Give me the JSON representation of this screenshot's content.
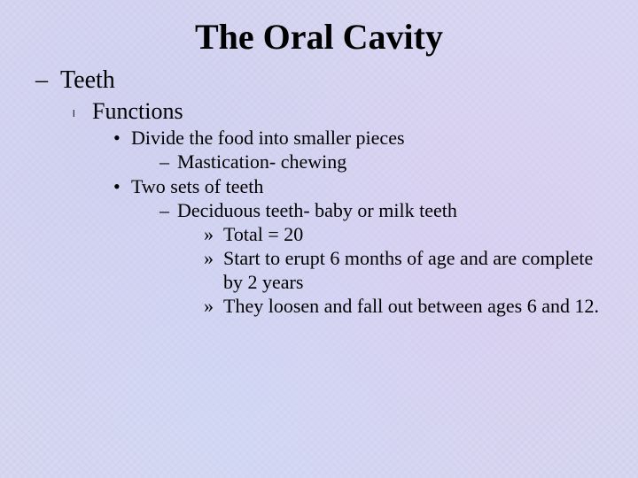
{
  "title": "The Oral Cavity",
  "colors": {
    "background": "#d8d8f0",
    "text": "#000000"
  },
  "typography": {
    "font_family": "Times New Roman",
    "title_fontsize": 40,
    "title_weight": "bold",
    "lvl1_fontsize": 28,
    "lvl2_fontsize": 26,
    "body_fontsize": 22
  },
  "outline": {
    "lvl1_heading": "Teeth",
    "lvl2_heading": "Functions",
    "items": [
      {
        "text": "Divide the food into smaller pieces",
        "sub": [
          {
            "text": "Mastication- chewing"
          }
        ]
      },
      {
        "text": "Two sets of teeth",
        "sub": [
          {
            "text": "Deciduous teeth- baby or milk teeth",
            "sub": [
              {
                "text": "Total = 20"
              },
              {
                "text": "Start to erupt 6 months of age and are complete by 2 years"
              },
              {
                "text": "They loosen and fall out between ages 6 and 12."
              }
            ]
          }
        ]
      }
    ]
  }
}
